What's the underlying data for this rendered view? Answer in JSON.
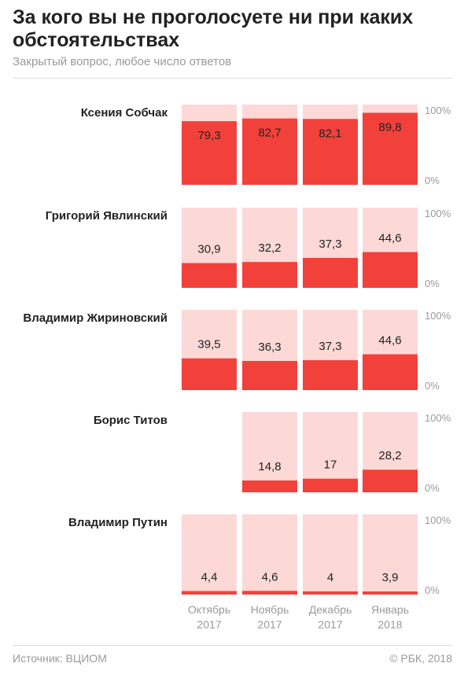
{
  "title": "За кого вы не проголосуете ни при каких обстоятельствах",
  "subtitle": "Закрытый вопрос, любое число ответов",
  "source": "Источник: ВЦИОМ",
  "copyright": "© РБК, 2018",
  "colors": {
    "bar": "#f2413b",
    "bar_bg": "#fcd9d7",
    "text": "#222222",
    "muted": "#9a9a9a",
    "divider": "#dddddd"
  },
  "chart_data": {
    "type": "bar",
    "categories": [
      "Октябрь\n2017",
      "Ноябрь\n2017",
      "Декабрь\n2017",
      "Январь\n2018"
    ],
    "ylim": [
      0,
      100
    ],
    "y_tick_labels": [
      "100%",
      "0%"
    ],
    "series": [
      {
        "name": "Ксения Собчак",
        "values": [
          79.3,
          82.7,
          82.1,
          89.8
        ],
        "labels": [
          "79,3",
          "82,7",
          "82,1",
          "89,8"
        ]
      },
      {
        "name": "Григорий Явлинский",
        "values": [
          30.9,
          32.2,
          37.3,
          44.6
        ],
        "labels": [
          "30,9",
          "32,2",
          "37,3",
          "44,6"
        ]
      },
      {
        "name": "Владимир Жириновский",
        "values": [
          39.5,
          36.3,
          37.3,
          44.6
        ],
        "labels": [
          "39,5",
          "36,3",
          "37,3",
          "44,6"
        ]
      },
      {
        "name": "Борис Титов",
        "values": [
          null,
          14.8,
          17,
          28.2
        ],
        "labels": [
          "",
          "14,8",
          "17",
          "28,2"
        ]
      },
      {
        "name": "Владимир Путин",
        "values": [
          4.4,
          4.6,
          4,
          3.9
        ],
        "labels": [
          "4,4",
          "4,6",
          "4",
          "3,9"
        ]
      }
    ]
  }
}
